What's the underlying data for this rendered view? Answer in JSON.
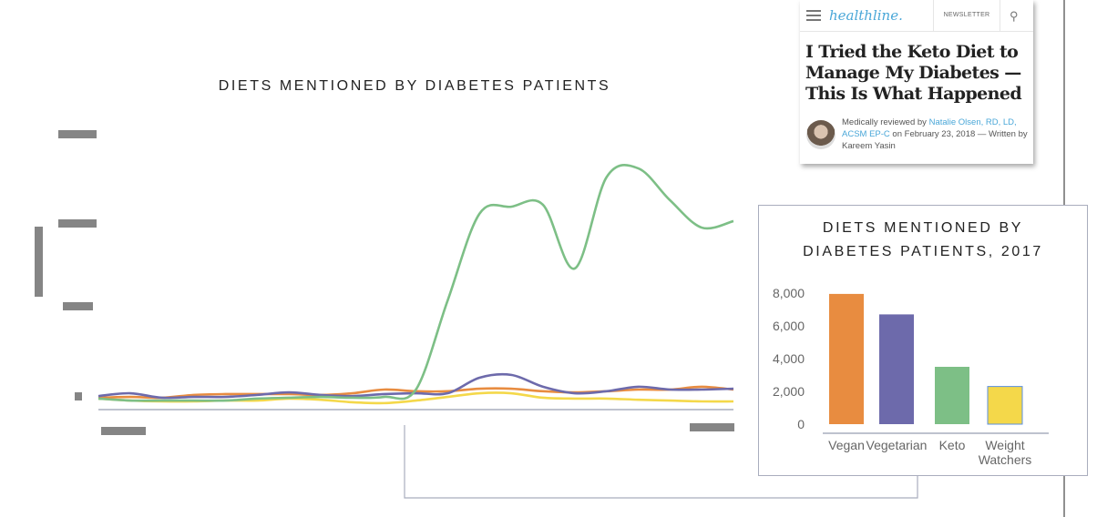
{
  "article_card": {
    "logo": "healthline.",
    "newsletter_label": "NEWSLETTER",
    "menu_icon": "hamburger-menu-icon",
    "search_icon": "magnifier-icon",
    "headline": "I Tried the Keto Diet to Manage My Diabetes — This Is What Happened",
    "byline_prefix": "Medically reviewed by ",
    "reviewer": "Natalie Olsen, RD, LD, ACSM EP-C",
    "byline_date": " on February 23, 2018 — Written by Kareem Yasin"
  },
  "chart_data": [
    {
      "type": "line",
      "title": "DIETS MENTIONED BY DIABETES PATIENTS",
      "xlabel": "",
      "ylabel": "",
      "note": "axis tick labels redacted",
      "x": [
        0,
        1,
        2,
        3,
        4,
        5,
        6,
        7,
        8,
        9,
        10,
        11,
        12,
        13,
        14,
        15,
        16,
        17,
        18,
        19,
        20
      ],
      "ylim": [
        0,
        100
      ],
      "grid": false,
      "series": [
        {
          "color": "#7dbf86",
          "values": [
            3.9,
            3.2,
            3.2,
            3.2,
            3.2,
            3.9,
            4.2,
            4.5,
            4.2,
            4.5,
            7.1,
            38.7,
            69.4,
            71.9,
            72.6,
            50,
            82.3,
            85.5,
            74.2,
            64.5,
            66.8
          ]
        },
        {
          "color": "#6d6aab",
          "values": [
            4.8,
            5.8,
            4.2,
            4.5,
            4.5,
            5.2,
            6.1,
            5.2,
            4.8,
            5.5,
            5.8,
            5.8,
            11.3,
            12.3,
            8.1,
            5.8,
            6.5,
            8.1,
            7.1,
            7.1,
            7.4
          ]
        },
        {
          "color": "#e88c40",
          "values": [
            4.2,
            4.5,
            4.2,
            5.2,
            5.5,
            5.5,
            5.5,
            5.2,
            5.8,
            7.1,
            6.5,
            6.5,
            7.4,
            7.4,
            6.5,
            6.1,
            6.5,
            7.1,
            7.1,
            8.1,
            7.1
          ]
        },
        {
          "color": "#f4d84a",
          "values": [
            3.9,
            3.2,
            2.9,
            2.9,
            3.2,
            3.2,
            3.9,
            3.5,
            2.6,
            2.3,
            3.2,
            4.5,
            5.8,
            5.8,
            4.2,
            3.9,
            3.9,
            3.5,
            3.2,
            2.9,
            2.9
          ]
        }
      ]
    },
    {
      "type": "bar",
      "title_line1": "DIETS MENTIONED BY",
      "title_line2": "DIABETES PATIENTS, 2017",
      "categories": [
        "Vegan",
        "Vegetarian",
        "Keto",
        "Weight Watchers"
      ],
      "values": [
        7950,
        6700,
        3500,
        2300
      ],
      "colors": [
        "#e88c40",
        "#6d6aab",
        "#7dbf86",
        "#f4d84a"
      ],
      "ylim": [
        0,
        8000
      ],
      "yticks": [
        "0",
        "2,000",
        "4,000",
        "6,000",
        "8,000"
      ],
      "grid": false
    }
  ]
}
